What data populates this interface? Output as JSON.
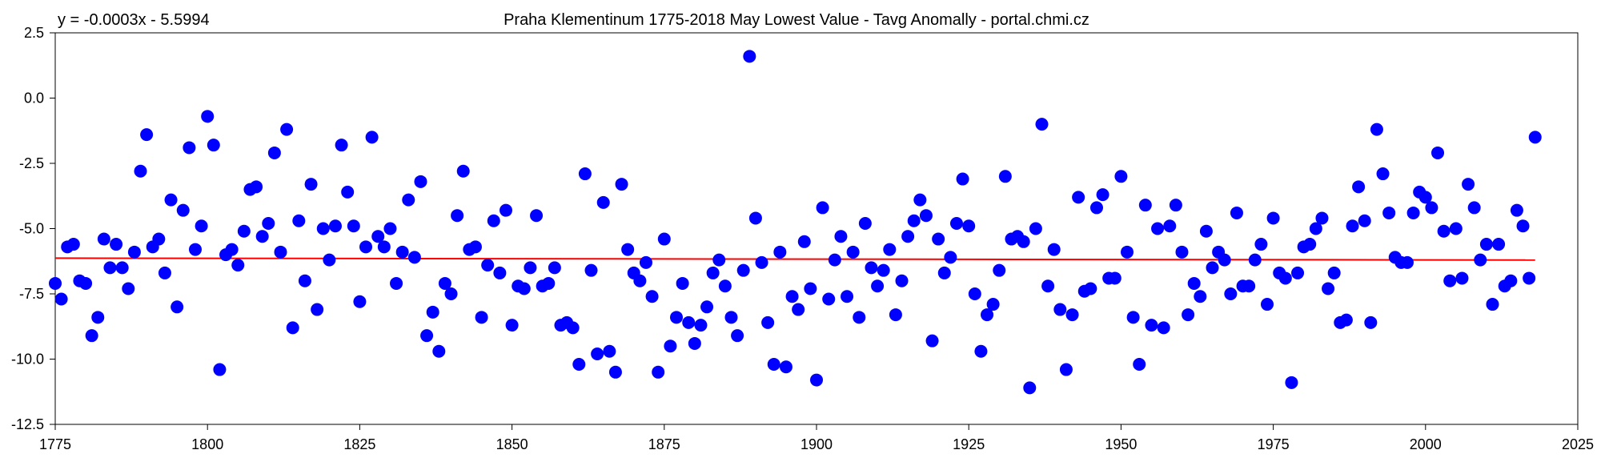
{
  "chart_data": {
    "type": "scatter",
    "title": "Praha Klementinum 1775-2018 May Lowest Value - Tavg Anomally - portal.chmi.cz",
    "annotation": "y = -0.0003x - 5.5994",
    "xlabel": "",
    "ylabel": "",
    "xlim": [
      1775,
      2025
    ],
    "ylim": [
      -12.5,
      2.5
    ],
    "x_ticks": [
      "1775",
      "1800",
      "1825",
      "1850",
      "1875",
      "1900",
      "1925",
      "1950",
      "1975",
      "2000",
      "2025"
    ],
    "y_ticks": [
      "2.5",
      "0.0",
      "-2.5",
      "-5.0",
      "-7.5",
      "-10.0",
      "-12.5"
    ],
    "grid": false,
    "legend": "none",
    "colors": {
      "points": "#0000ff",
      "trend": "#ff0000"
    },
    "trend": {
      "slope": -0.0003,
      "intercept": -5.5994
    },
    "series": [
      {
        "x": [
          1775,
          1776,
          1777,
          1778,
          1779,
          1780,
          1781,
          1782,
          1783,
          1784,
          1785,
          1786,
          1787,
          1788,
          1789,
          1790,
          1791,
          1792,
          1793,
          1794,
          1795,
          1796,
          1797,
          1798,
          1799,
          1800,
          1801,
          1802,
          1803,
          1804,
          1805,
          1806,
          1807,
          1808,
          1809,
          1810,
          1811,
          1812,
          1813,
          1814,
          1815,
          1816,
          1817,
          1818,
          1819,
          1820,
          1821,
          1822,
          1823,
          1824,
          1825,
          1826,
          1827,
          1828,
          1829,
          1830,
          1831,
          1832,
          1833,
          1834,
          1835,
          1836,
          1837,
          1838,
          1839,
          1840,
          1841,
          1842,
          1843,
          1844,
          1845,
          1846,
          1847,
          1848,
          1849,
          1850,
          1851,
          1852,
          1853,
          1854,
          1855,
          1856,
          1857,
          1858,
          1859,
          1860,
          1861,
          1862,
          1863,
          1864,
          1865,
          1866,
          1867,
          1868,
          1869,
          1870,
          1871,
          1872,
          1873,
          1874,
          1875,
          1876,
          1877,
          1878,
          1879,
          1880,
          1881,
          1882,
          1883,
          1884,
          1885,
          1886,
          1887,
          1888,
          1889,
          1890,
          1891,
          1892,
          1893,
          1894,
          1895,
          1896,
          1897,
          1898,
          1899,
          1900,
          1901,
          1902,
          1903,
          1904,
          1905,
          1906,
          1907,
          1908,
          1909,
          1910,
          1911,
          1912,
          1913,
          1914,
          1915,
          1916,
          1917,
          1918,
          1919,
          1920,
          1921,
          1922,
          1923,
          1924,
          1925,
          1926,
          1927,
          1928,
          1929,
          1930,
          1931,
          1932,
          1933,
          1934,
          1935,
          1936,
          1937,
          1938,
          1939,
          1940,
          1941,
          1942,
          1943,
          1944,
          1945,
          1946,
          1947,
          1948,
          1949,
          1950,
          1951,
          1952,
          1953,
          1954,
          1955,
          1956,
          1957,
          1958,
          1959,
          1960,
          1961,
          1962,
          1963,
          1964,
          1965,
          1966,
          1967,
          1968,
          1969,
          1970,
          1971,
          1972,
          1973,
          1974,
          1975,
          1976,
          1977,
          1978,
          1979,
          1980,
          1981,
          1982,
          1983,
          1984,
          1985,
          1986,
          1987,
          1988,
          1989,
          1990,
          1991,
          1992,
          1993,
          1994,
          1995,
          1996,
          1997,
          1998,
          1999,
          2000,
          2001,
          2002,
          2003,
          2004,
          2005,
          2006,
          2007,
          2008,
          2009,
          2010,
          2011,
          2012,
          2013,
          2014,
          2015,
          2016,
          2017,
          2018
        ],
        "y": [
          -7.1,
          -7.7,
          -5.7,
          -5.6,
          -7.0,
          -7.1,
          -9.1,
          -8.4,
          -5.4,
          -6.5,
          -5.6,
          -6.5,
          -7.3,
          -5.9,
          -2.8,
          -1.4,
          -5.7,
          -5.4,
          -6.7,
          -3.9,
          -8.0,
          -4.3,
          -1.9,
          -5.8,
          -4.9,
          -0.7,
          -1.8,
          -10.4,
          -6.0,
          -5.8,
          -6.4,
          -5.1,
          -3.5,
          -3.4,
          -5.3,
          -4.8,
          -2.1,
          -5.9,
          -1.2,
          -8.8,
          -4.7,
          -7.0,
          -3.3,
          -8.1,
          -5.0,
          -6.2,
          -4.9,
          -1.8,
          -3.6,
          -4.9,
          -7.8,
          -5.7,
          -1.5,
          -5.3,
          -5.7,
          -5.0,
          -7.1,
          -5.9,
          -3.9,
          -6.1,
          -3.2,
          -9.1,
          -8.2,
          -9.7,
          -7.1,
          -7.5,
          -4.5,
          -2.8,
          -5.8,
          -5.7,
          -8.4,
          -6.4,
          -4.7,
          -6.7,
          -4.3,
          -8.7,
          -7.2,
          -7.3,
          -6.5,
          -4.5,
          -7.2,
          -7.1,
          -6.5,
          -8.7,
          -8.6,
          -8.8,
          -10.2,
          -2.9,
          -6.6,
          -9.8,
          -4.0,
          -9.7,
          -10.5,
          -3.3,
          -5.8,
          -6.7,
          -7.0,
          -6.3,
          -7.6,
          -10.5,
          -5.4,
          -9.5,
          -8.4,
          -7.1,
          -8.6,
          -9.4,
          -8.7,
          -8.0,
          -6.7,
          -6.2,
          -7.2,
          -8.4,
          -9.1,
          -6.6,
          1.6,
          -4.6,
          -6.3,
          -8.6,
          -10.2,
          -5.9,
          -10.3,
          -7.6,
          -8.1,
          -5.5,
          -7.3,
          -10.8,
          -4.2,
          -7.7,
          -6.2,
          -5.3,
          -7.6,
          -5.9,
          -8.4,
          -4.8,
          -6.5,
          -7.2,
          -6.6,
          -5.8,
          -8.3,
          -7.0,
          -5.3,
          -4.7,
          -3.9,
          -4.5,
          -9.3,
          -5.4,
          -6.7,
          -6.1,
          -4.8,
          -3.1,
          -4.9,
          -7.5,
          -9.7,
          -8.3,
          -7.9,
          -6.6,
          -3.0,
          -5.4,
          -5.3,
          -5.5,
          -11.1,
          -5.0,
          -1.0,
          -7.2,
          -5.8,
          -8.1,
          -10.4,
          -8.3,
          -3.8,
          -7.4,
          -7.3,
          -4.2,
          -3.7,
          -6.9,
          -6.9,
          -3.0,
          -5.9,
          -8.4,
          -10.2,
          -4.1,
          -8.7,
          -5.0,
          -8.8,
          -4.9,
          -4.1,
          -5.9,
          -8.3,
          -7.1,
          -7.6,
          -5.1,
          -6.5,
          -5.9,
          -6.2,
          -7.5,
          -4.4,
          -7.2,
          -7.2,
          -6.2,
          -5.6,
          -7.9,
          -4.6,
          -6.7,
          -6.9,
          -10.9,
          -6.7,
          -5.7,
          -5.6,
          -5.0,
          -4.6,
          -7.3,
          -6.7,
          -8.6,
          -8.5,
          -4.9,
          -3.4,
          -4.7,
          -8.6,
          -1.2,
          -2.9,
          -4.4,
          -6.1,
          -6.3,
          -6.3,
          -4.4,
          -3.6,
          -3.8,
          -4.2,
          -2.1,
          -5.1,
          -7.0,
          -5.0,
          -6.9,
          -3.3,
          -4.2,
          -6.2,
          -5.6,
          -7.9,
          -5.6,
          -7.2,
          -7.0,
          -4.3,
          -4.9,
          -6.9,
          -1.5
        ]
      }
    ]
  }
}
